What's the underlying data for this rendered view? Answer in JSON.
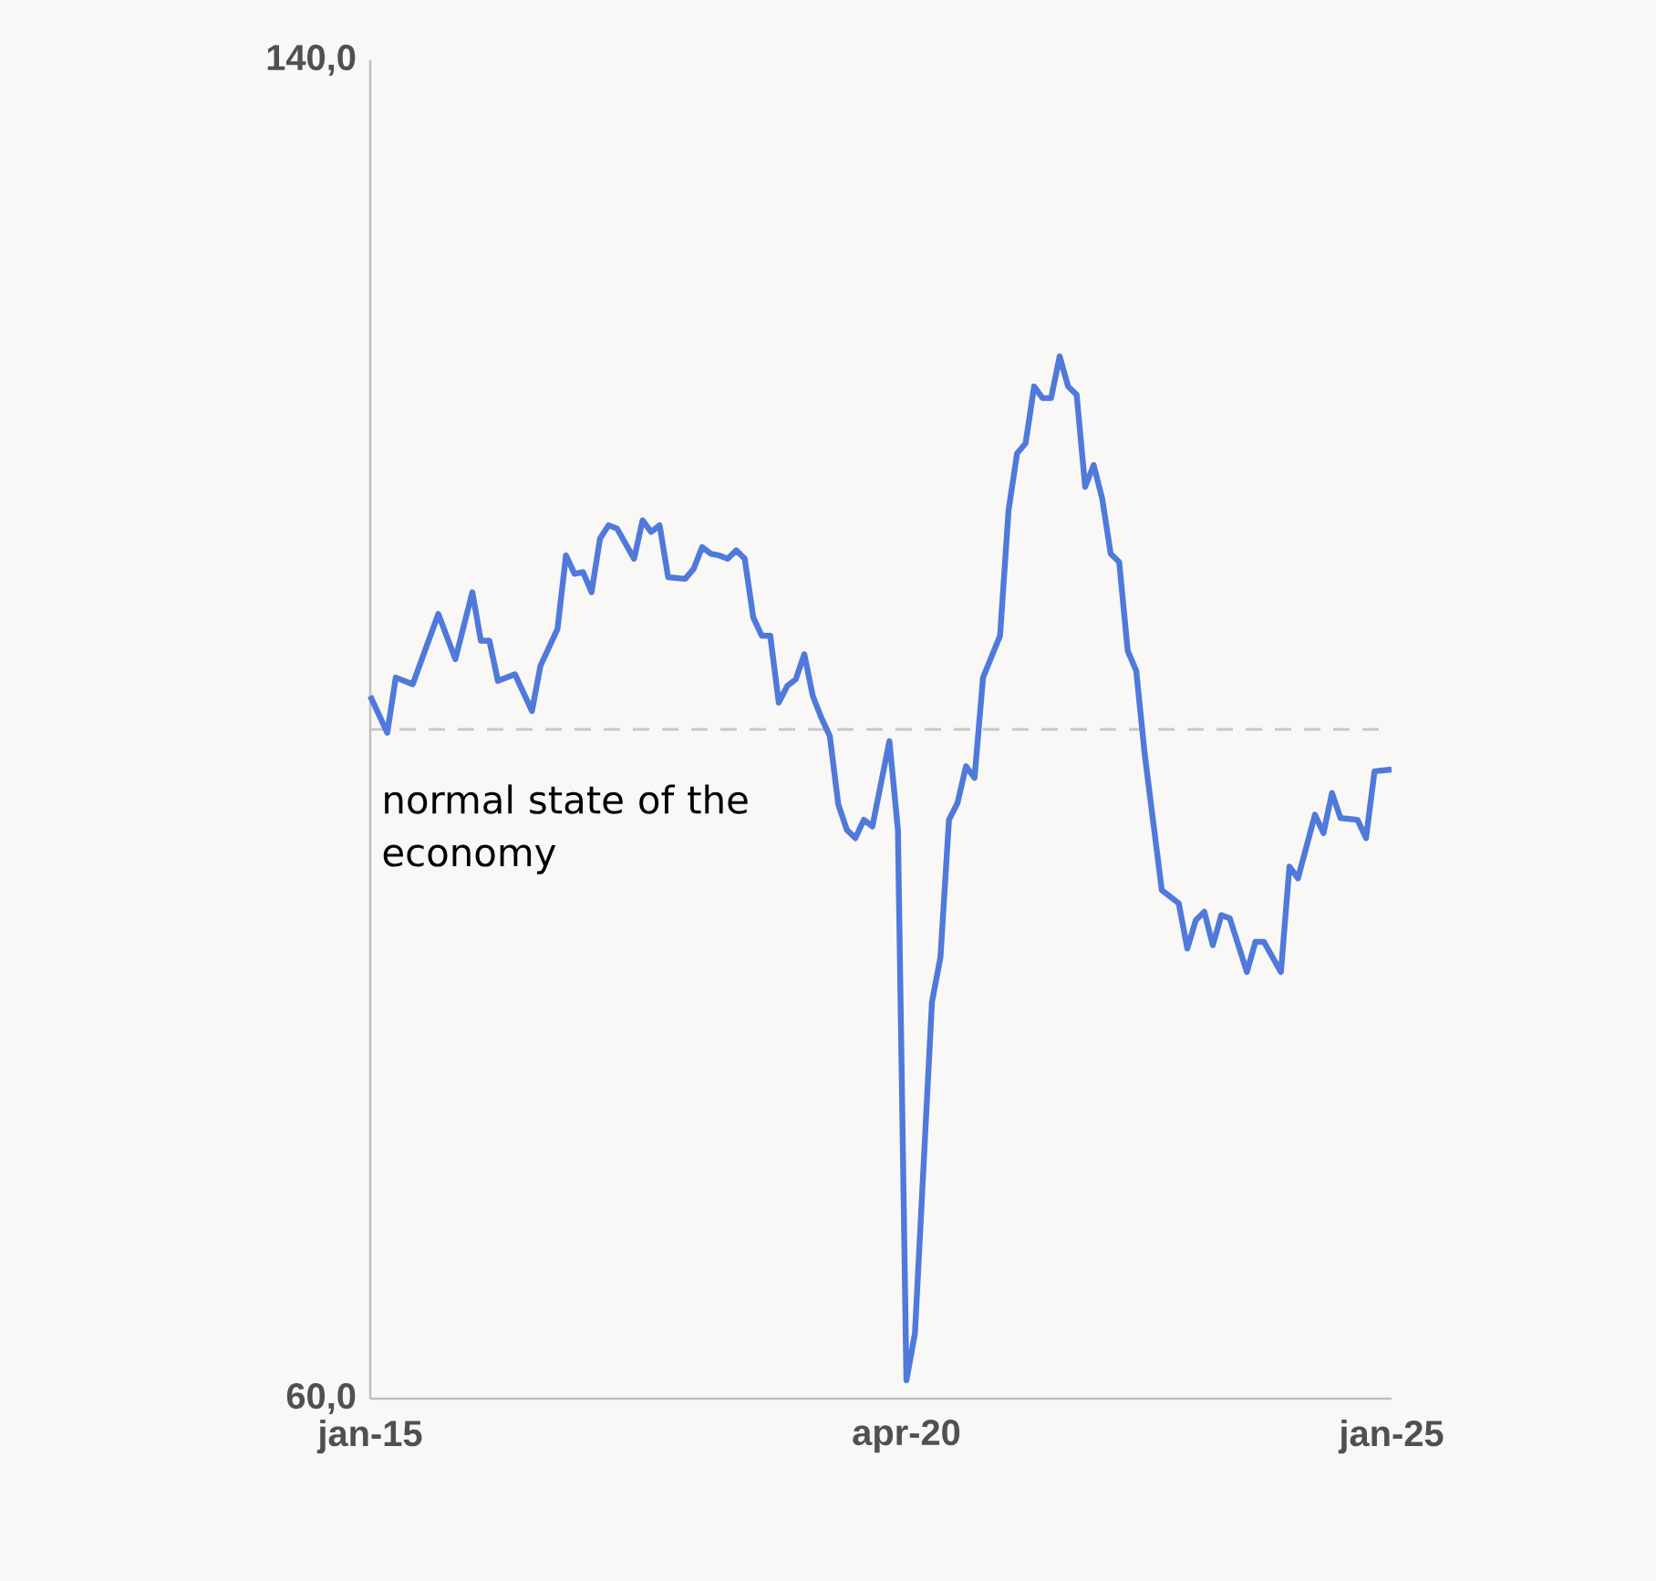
{
  "chart_data": {
    "type": "line",
    "x": [
      "2015-01",
      "2015-03",
      "2015-04",
      "2015-06",
      "2015-09",
      "2015-11",
      "2016-01",
      "2016-02",
      "2016-03",
      "2016-04",
      "2016-06",
      "2016-08",
      "2016-09",
      "2016-11",
      "2016-12",
      "2017-01",
      "2017-02",
      "2017-03",
      "2017-04",
      "2017-05",
      "2017-06",
      "2017-08",
      "2017-09",
      "2017-10",
      "2017-11",
      "2017-12",
      "2018-02",
      "2018-03",
      "2018-04",
      "2018-05",
      "2018-06",
      "2018-07",
      "2018-08",
      "2018-09",
      "2018-10",
      "2018-11",
      "2018-12",
      "2019-01",
      "2019-02",
      "2019-03",
      "2019-04",
      "2019-05",
      "2019-06",
      "2019-07",
      "2019-08",
      "2019-09",
      "2019-10",
      "2019-11",
      "2019-12",
      "2020-02",
      "2020-03",
      "2020-04",
      "2020-05",
      "2020-07",
      "2020-08",
      "2020-09",
      "2020-10",
      "2020-11",
      "2020-12",
      "2021-01",
      "2021-03",
      "2021-04",
      "2021-05",
      "2021-06",
      "2021-07",
      "2021-08",
      "2021-09",
      "2021-10",
      "2021-11",
      "2021-12",
      "2022-01",
      "2022-02",
      "2022-03",
      "2022-04",
      "2022-05",
      "2022-06",
      "2022-07",
      "2022-08",
      "2022-10",
      "2022-12",
      "2023-01",
      "2023-02",
      "2023-03",
      "2023-04",
      "2023-05",
      "2023-06",
      "2023-08",
      "2023-09",
      "2023-10",
      "2023-12",
      "2024-01",
      "2024-02",
      "2024-04",
      "2024-05",
      "2024-06",
      "2024-07",
      "2024-09",
      "2024-10",
      "2024-11",
      "2025-01"
    ],
    "series": [
      {
        "color": "#4f79db",
        "values": [
          102.0,
          99.8,
          103.1,
          102.7,
          106.9,
          104.2,
          108.2,
          105.3,
          105.3,
          102.9,
          103.3,
          101.1,
          103.8,
          106.0,
          110.4,
          109.3,
          109.4,
          108.2,
          111.4,
          112.2,
          112.0,
          110.2,
          112.5,
          111.8,
          112.2,
          109.1,
          109.0,
          109.6,
          110.9,
          110.5,
          110.4,
          110.2,
          110.7,
          110.2,
          106.7,
          105.6,
          105.6,
          101.6,
          102.6,
          103.0,
          104.5,
          102.0,
          100.7,
          99.6,
          95.5,
          94.0,
          93.5,
          94.6,
          94.2,
          99.3,
          94.0,
          61.1,
          63.9,
          83.7,
          86.4,
          94.6,
          95.6,
          97.8,
          97.1,
          103.1,
          105.6,
          113.1,
          116.5,
          117.1,
          120.5,
          119.8,
          119.8,
          122.3,
          120.5,
          120.0,
          114.5,
          115.8,
          113.8,
          110.5,
          110.0,
          104.7,
          103.5,
          98.5,
          90.4,
          89.6,
          86.9,
          88.6,
          89.1,
          87.1,
          88.9,
          88.7,
          85.5,
          87.3,
          87.3,
          85.5,
          91.8,
          91.1,
          94.9,
          93.8,
          96.2,
          94.7,
          94.6,
          93.5,
          97.5,
          97.6
        ]
      }
    ],
    "xlim": [
      "2015-01",
      "2025-01"
    ],
    "xticks": [
      {
        "value": "2015-01",
        "label": "jan-15"
      },
      {
        "value": "2020-04",
        "label": "apr-20"
      },
      {
        "value": "2025-01",
        "label": "jan-25"
      }
    ],
    "ylim": [
      60,
      140
    ],
    "yticks": [
      {
        "value": 60,
        "label": "60,0"
      },
      {
        "value": 140,
        "label": "140,0"
      }
    ],
    "ref_lines": [
      {
        "axis": "y",
        "value": 100,
        "label": "normal state of the economy",
        "color": "#c8c8c8",
        "line_style": "dashed"
      }
    ]
  }
}
